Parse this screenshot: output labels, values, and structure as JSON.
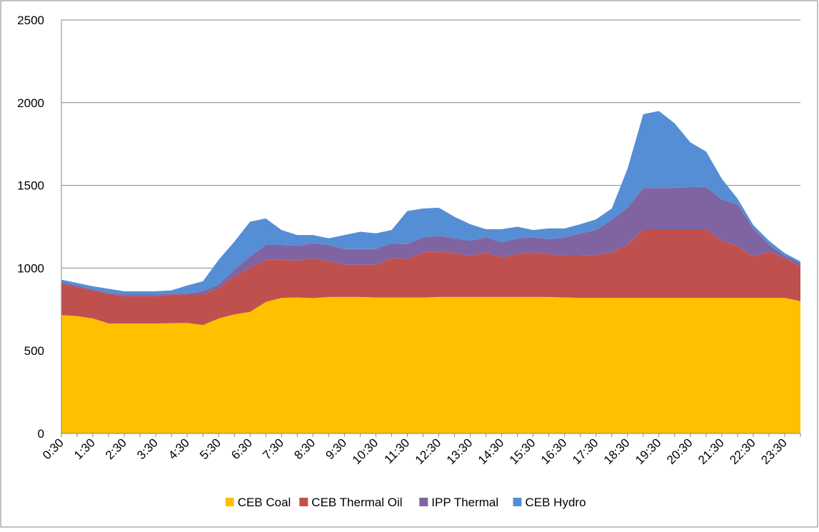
{
  "chart_data": {
    "type": "stacked-area",
    "categories": [
      "0:30",
      null,
      "1:30",
      null,
      "2:30",
      null,
      "3:30",
      null,
      "4:30",
      null,
      "5:30",
      null,
      "6:30",
      null,
      "7:30",
      null,
      "8:30",
      null,
      "9:30",
      null,
      "10:30",
      null,
      "11:30",
      null,
      "12:30",
      null,
      "13:30",
      null,
      "14:30",
      null,
      "15:30",
      null,
      "16:30",
      null,
      "17:30",
      null,
      "18:30",
      null,
      "19:30",
      null,
      "20:30",
      null,
      "21:30",
      null,
      "22:30",
      null,
      "23:30",
      null
    ],
    "series": [
      {
        "name": "CEB Coal",
        "color": "#FFC000",
        "values": [
          715,
          710,
          695,
          665,
          665,
          665,
          665,
          667,
          668,
          655,
          695,
          720,
          735,
          795,
          820,
          822,
          818,
          825,
          825,
          825,
          822,
          822,
          822,
          822,
          825,
          825,
          825,
          825,
          825,
          825,
          825,
          825,
          822,
          820,
          820,
          820,
          820,
          820,
          820,
          820,
          820,
          820,
          820,
          820,
          820,
          820,
          820,
          800
        ]
      },
      {
        "name": "CEB Thermal Oil",
        "color": "#C0504D",
        "values": [
          190,
          175,
          170,
          180,
          165,
          165,
          165,
          173,
          172,
          185,
          185,
          230,
          265,
          255,
          230,
          223,
          242,
          215,
          195,
          195,
          198,
          238,
          233,
          273,
          275,
          265,
          250,
          270,
          240,
          260,
          270,
          260,
          253,
          255,
          260,
          275,
          320,
          415,
          415,
          415,
          415,
          415,
          345,
          310,
          250,
          280,
          240,
          210
        ]
      },
      {
        "name": "IPP Thermal",
        "color": "#8064A2",
        "values": [
          10,
          10,
          5,
          5,
          10,
          10,
          10,
          5,
          5,
          20,
          20,
          40,
          70,
          90,
          90,
          90,
          90,
          100,
          95,
          95,
          95,
          90,
          90,
          90,
          95,
          90,
          90,
          90,
          90,
          95,
          90,
          90,
          110,
          135,
          150,
          195,
          225,
          250,
          250,
          250,
          255,
          255,
          250,
          255,
          170,
          40,
          15,
          20
        ]
      },
      {
        "name": "CEB Hydro",
        "color": "#558ED5",
        "values": [
          15,
          15,
          20,
          25,
          20,
          20,
          20,
          20,
          50,
          60,
          150,
          170,
          210,
          160,
          90,
          65,
          50,
          40,
          85,
          105,
          95,
          80,
          200,
          175,
          170,
          130,
          100,
          50,
          80,
          70,
          45,
          65,
          55,
          55,
          65,
          70,
          235,
          445,
          465,
          390,
          270,
          215,
          125,
          35,
          20,
          25,
          15,
          10
        ]
      }
    ],
    "ylim": [
      0,
      2500
    ],
    "yticks": [
      0,
      500,
      1000,
      1500,
      2000,
      2500
    ],
    "grid": true,
    "legend": "bottom"
  }
}
